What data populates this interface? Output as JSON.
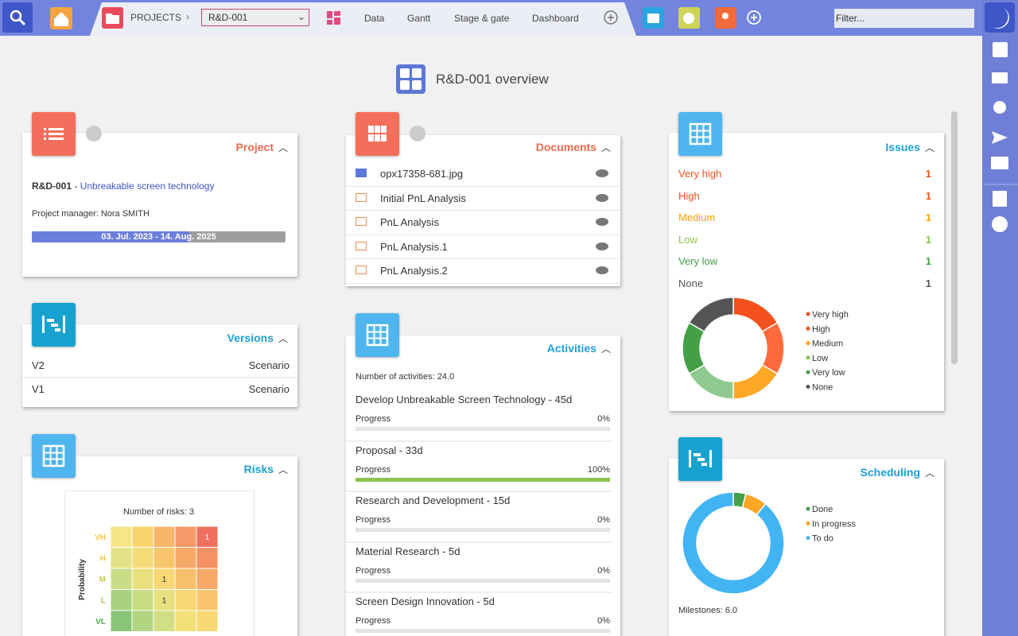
{
  "toolbar": {
    "projects": "PROJECTS",
    "project_select": "R&D-001",
    "tabs": [
      "Data",
      "Gantt",
      "Stage & gate",
      "Dashboard"
    ],
    "filter_placeholder": "Filter..."
  },
  "page_title": "R&D-001 overview",
  "project_card": {
    "title": "Project",
    "code": "R&D-001",
    "separator": " - ",
    "name": "Unbreakable screen technology",
    "manager": "Project manager: Nora SMITH",
    "dates": "03. Jul. 2023  -  14. Aug. 2025",
    "timeline_progress": 62
  },
  "versions_card": {
    "title": "Versions",
    "rows": [
      [
        "V2",
        "Scenario"
      ],
      [
        "V1",
        "Scenario"
      ]
    ]
  },
  "risks_card": {
    "title": "Risks",
    "chart_title": "Number of risks: 3",
    "y_axis_label": "Probability",
    "y_levels": [
      "VH",
      "H",
      "M",
      "L",
      "VL"
    ],
    "matrix": [
      [
        null,
        null,
        null,
        null,
        1
      ],
      [
        null,
        null,
        null,
        null,
        null
      ],
      [
        null,
        null,
        1,
        null,
        null
      ],
      [
        null,
        null,
        1,
        null,
        null
      ],
      [
        null,
        null,
        null,
        null,
        null
      ]
    ]
  },
  "documents_card": {
    "title": "Documents",
    "files": [
      "opx17358-681.jpg",
      "Initial PnL Analysis",
      "PnL Analysis",
      "PnL Analysis.1",
      "PnL Analysis.2"
    ]
  },
  "activities_card": {
    "title": "Activities",
    "count_label": "Number of activities: 24.0",
    "items": [
      {
        "name": "Develop Unbreakable Screen Technology - 45d",
        "progress_label": "Progress",
        "value": 0,
        "value_label": "0%"
      },
      {
        "name": "Proposal - 33d",
        "progress_label": "Progress",
        "value": 100,
        "value_label": "100%"
      },
      {
        "name": "Research and Development - 15d",
        "progress_label": "Progress",
        "value": 0,
        "value_label": "0%"
      },
      {
        "name": "Material Research - 5d",
        "progress_label": "Progress",
        "value": 0,
        "value_label": "0%"
      },
      {
        "name": "Screen Design Innovation - 5d",
        "progress_label": "Progress",
        "value": 0,
        "value_label": "0%"
      }
    ]
  },
  "issues_card": {
    "title": "Issues",
    "chart_data": {
      "type": "donut",
      "categories": [
        "Very high",
        "High",
        "Medium",
        "Low",
        "Very low",
        "None"
      ],
      "values": [
        1,
        1,
        1,
        1,
        1,
        1
      ],
      "colors": [
        "#f4511e",
        "#f4511e",
        "#ffa000",
        "#8bc34a",
        "#43a047",
        "#555555"
      ],
      "segment_colors": [
        "#f4511e",
        "#ff6a3d",
        "#ffa726",
        "#8fc98f",
        "#43a047",
        "#555555"
      ]
    }
  },
  "scheduling_card": {
    "title": "Scheduling",
    "chart_data": {
      "type": "donut",
      "categories": [
        "Done",
        "In progress",
        "To do"
      ],
      "values": [
        4,
        7,
        89
      ],
      "colors": [
        "#43a047",
        "#ffa726",
        "#42b4f4"
      ]
    },
    "milestones": "Milestones: 6.0"
  }
}
